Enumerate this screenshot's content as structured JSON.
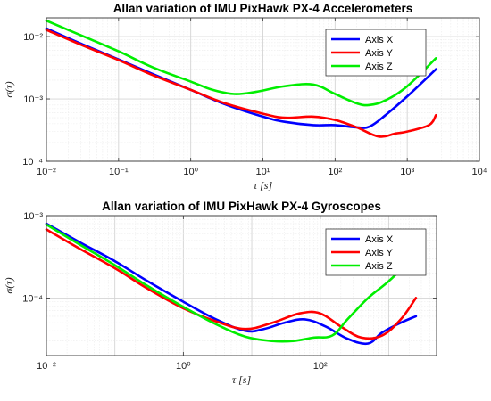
{
  "chart_data": [
    {
      "type": "line",
      "title": "Allan variation of IMU PixHawk PX-4 Accelerometers",
      "xlabel": "τ [s]",
      "ylabel": "σ(τ)",
      "xscale": "log",
      "yscale": "log",
      "xlim": [
        0.01,
        10000
      ],
      "ylim": [
        0.0001,
        0.02
      ],
      "xticks": [
        0.01,
        0.1,
        1,
        10,
        100,
        1000,
        10000
      ],
      "xtick_labels": [
        "10⁻²",
        "10⁻¹",
        "10⁰",
        "10¹",
        "10²",
        "10³",
        "10⁴"
      ],
      "yticks": [
        0.0001,
        0.001,
        0.01
      ],
      "ytick_labels": [
        "10⁻⁴",
        "10⁻³",
        "10⁻²"
      ],
      "grid": true,
      "legend_position": "top-right",
      "series": [
        {
          "name": "Axis X",
          "color": "#0000ff",
          "points": [
            [
              0.01,
              0.0135
            ],
            [
              0.03,
              0.0077
            ],
            [
              0.1,
              0.0043
            ],
            [
              0.3,
              0.0025
            ],
            [
              1,
              0.0014
            ],
            [
              3,
              0.00082
            ],
            [
              10,
              0.00052
            ],
            [
              20,
              0.00043
            ],
            [
              50,
              0.00038
            ],
            [
              100,
              0.00038
            ],
            [
              200,
              0.00035
            ],
            [
              300,
              0.00036
            ],
            [
              500,
              0.00055
            ],
            [
              1000,
              0.0011
            ],
            [
              2500,
              0.003
            ]
          ]
        },
        {
          "name": "Axis Y",
          "color": "#ff0000",
          "points": [
            [
              0.01,
              0.0128
            ],
            [
              0.03,
              0.0074
            ],
            [
              0.1,
              0.0042
            ],
            [
              0.3,
              0.0024
            ],
            [
              1,
              0.0014
            ],
            [
              3,
              0.00085
            ],
            [
              10,
              0.00058
            ],
            [
              20,
              0.0005
            ],
            [
              50,
              0.00052
            ],
            [
              100,
              0.00046
            ],
            [
              200,
              0.00035
            ],
            [
              400,
              0.00025
            ],
            [
              700,
              0.00028
            ],
            [
              1000,
              0.0003
            ],
            [
              2000,
              0.00038
            ],
            [
              2500,
              0.00055
            ]
          ]
        },
        {
          "name": "Axis Z",
          "color": "#00ee00",
          "points": [
            [
              0.01,
              0.018
            ],
            [
              0.03,
              0.0105
            ],
            [
              0.1,
              0.0058
            ],
            [
              0.3,
              0.0032
            ],
            [
              1,
              0.0019
            ],
            [
              2,
              0.0014
            ],
            [
              4,
              0.0012
            ],
            [
              8,
              0.0013
            ],
            [
              20,
              0.0016
            ],
            [
              50,
              0.0017
            ],
            [
              100,
              0.0012
            ],
            [
              200,
              0.00085
            ],
            [
              300,
              0.0008
            ],
            [
              500,
              0.00095
            ],
            [
              1000,
              0.0016
            ],
            [
              2500,
              0.0045
            ]
          ]
        }
      ]
    },
    {
      "type": "line",
      "title": "Allan variation of IMU PixHawk PX-4 Gyroscopes",
      "xlabel": "τ [s]",
      "ylabel": "σ(τ)",
      "xscale": "log",
      "yscale": "log",
      "xlim": [
        0.01,
        5000
      ],
      "ylim": [
        2e-05,
        0.001
      ],
      "xticks": [
        0.01,
        1,
        100
      ],
      "xtick_labels": [
        "10⁻²",
        "10⁰",
        "10²"
      ],
      "yticks": [
        0.0001,
        0.001
      ],
      "ytick_labels": [
        "10⁻⁴",
        "10⁻³"
      ],
      "grid": true,
      "legend_position": "top-right",
      "series": [
        {
          "name": "Axis X",
          "color": "#0000ff",
          "points": [
            [
              0.01,
              0.0008
            ],
            [
              0.03,
              0.00048
            ],
            [
              0.1,
              0.00028
            ],
            [
              0.3,
              0.00016
            ],
            [
              1,
              9e-05
            ],
            [
              3,
              5.5e-05
            ],
            [
              8,
              4e-05
            ],
            [
              15,
              4.2e-05
            ],
            [
              30,
              5e-05
            ],
            [
              60,
              5.5e-05
            ],
            [
              120,
              4.5e-05
            ],
            [
              250,
              3.2e-05
            ],
            [
              500,
              2.8e-05
            ],
            [
              800,
              3.8e-05
            ],
            [
              1500,
              5e-05
            ],
            [
              2500,
              6e-05
            ]
          ]
        },
        {
          "name": "Axis Y",
          "color": "#ff0000",
          "points": [
            [
              0.01,
              0.00068
            ],
            [
              0.03,
              0.0004
            ],
            [
              0.1,
              0.00023
            ],
            [
              0.3,
              0.00013
            ],
            [
              1,
              7.5e-05
            ],
            [
              3,
              5.2e-05
            ],
            [
              8,
              4.2e-05
            ],
            [
              20,
              5e-05
            ],
            [
              50,
              6.5e-05
            ],
            [
              100,
              6.5e-05
            ],
            [
              200,
              4.5e-05
            ],
            [
              400,
              3.3e-05
            ],
            [
              800,
              3.5e-05
            ],
            [
              1500,
              5.5e-05
            ],
            [
              2500,
              0.0001
            ]
          ]
        },
        {
          "name": "Axis Z",
          "color": "#00ee00",
          "points": [
            [
              0.01,
              0.00078
            ],
            [
              0.03,
              0.00045
            ],
            [
              0.1,
              0.00025
            ],
            [
              0.3,
              0.00014
            ],
            [
              1,
              7.8e-05
            ],
            [
              3,
              4.8e-05
            ],
            [
              8,
              3.4e-05
            ],
            [
              20,
              3e-05
            ],
            [
              40,
              3e-05
            ],
            [
              80,
              3.3e-05
            ],
            [
              150,
              3.5e-05
            ],
            [
              250,
              5.5e-05
            ],
            [
              500,
              0.0001
            ],
            [
              1000,
              0.00016
            ],
            [
              2500,
              0.00033
            ]
          ]
        }
      ]
    }
  ]
}
